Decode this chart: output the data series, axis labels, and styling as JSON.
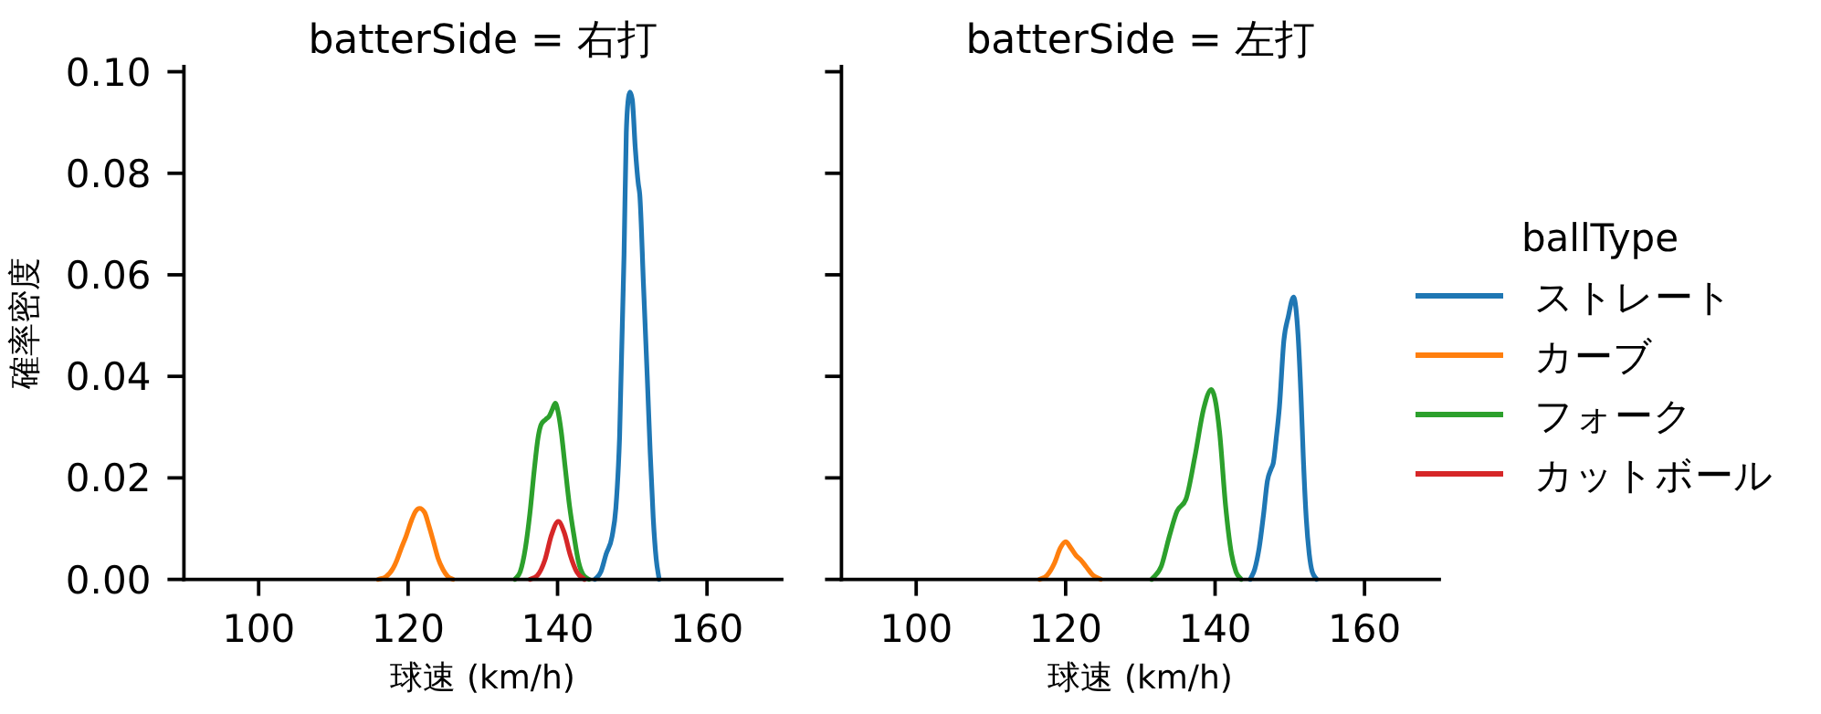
{
  "chart_data": [
    {
      "type": "line",
      "title": "batterSide = 右打",
      "xlabel": "球速 (km/h)",
      "ylabel": "確率密度",
      "legend_title": "ballType",
      "legend": "right",
      "xlim": [
        90,
        170
      ],
      "ylim": [
        0,
        0.101
      ],
      "xticks": [
        100,
        120,
        140,
        160
      ],
      "yticks": [
        {
          "value": 0,
          "label": "0.00"
        },
        0.02,
        0.04,
        0.06,
        0.08,
        {
          "value": 0.1,
          "label": "0.10"
        }
      ],
      "series": [
        {
          "name": "ストレート",
          "color": "#1f77b4",
          "x": [
            145.0,
            145.8,
            146.5,
            147.3,
            147.8,
            148.3,
            148.9,
            149.2,
            149.5,
            149.7,
            150.0,
            150.4,
            150.8,
            151.0,
            151.5,
            152.0,
            152.4,
            152.8,
            153.2,
            153.6
          ],
          "values": [
            0,
            0.0015,
            0.005,
            0.0085,
            0.014,
            0.028,
            0.064,
            0.088,
            0.095,
            0.096,
            0.0945,
            0.085,
            0.078,
            0.0758,
            0.058,
            0.04,
            0.025,
            0.0122,
            0.004,
            0
          ]
        },
        {
          "name": "カーブ",
          "color": "#ff7f0e",
          "x": [
            116.0,
            117.0,
            118.0,
            118.5,
            119.0,
            119.75,
            120.5,
            121.0,
            121.55,
            122.2,
            122.8,
            123.4,
            124.0,
            124.65,
            125.3,
            126.0
          ],
          "values": [
            0,
            0.0005,
            0.0022,
            0.0038,
            0.0058,
            0.0086,
            0.0118,
            0.0134,
            0.014,
            0.0132,
            0.0105,
            0.0074,
            0.0042,
            0.002,
            0.0006,
            0
          ]
        },
        {
          "name": "フォーク",
          "color": "#2ca02c",
          "x": [
            134.3,
            135.0,
            135.7,
            136.3,
            136.9,
            137.4,
            137.8,
            138.4,
            138.9,
            139.3,
            139.7,
            140.0,
            140.5,
            140.95,
            141.6,
            142.2,
            142.8,
            143.4,
            144.2
          ],
          "values": [
            0,
            0.0015,
            0.0062,
            0.013,
            0.0218,
            0.028,
            0.0305,
            0.0315,
            0.0322,
            0.0335,
            0.0347,
            0.0335,
            0.029,
            0.023,
            0.0145,
            0.0086,
            0.0035,
            0.001,
            0
          ]
        },
        {
          "name": "カットボール",
          "color": "#d62728",
          "x": [
            136.3,
            137.3,
            138.3,
            139.2,
            140.1,
            140.9,
            141.7,
            142.6,
            143.6
          ],
          "values": [
            0,
            0.0008,
            0.0038,
            0.0088,
            0.0114,
            0.0092,
            0.0048,
            0.0014,
            0
          ]
        }
      ]
    },
    {
      "type": "line",
      "title": "batterSide = 左打",
      "xlabel": "球速 (km/h)",
      "xlim": [
        90,
        170
      ],
      "ylim": [
        0,
        0.101
      ],
      "xticks": [
        100,
        120,
        140,
        160
      ],
      "yticks": [
        0,
        0.02,
        0.04,
        0.06,
        0.08,
        0.1
      ],
      "tick_labels": "x",
      "series": [
        {
          "color": "#1f77b4",
          "x": [
            144.7,
            145.3,
            145.9,
            146.5,
            147.0,
            147.5,
            147.8,
            148.2,
            148.6,
            149.2,
            149.8,
            150.5,
            151.1,
            151.5,
            151.8,
            152.2,
            152.6,
            153.0,
            153.6
          ],
          "values": [
            0,
            0.002,
            0.0062,
            0.013,
            0.0194,
            0.0218,
            0.023,
            0.028,
            0.0338,
            0.047,
            0.0518,
            0.0556,
            0.0482,
            0.036,
            0.0242,
            0.012,
            0.005,
            0.0015,
            0
          ]
        },
        {
          "color": "#ff7f0e",
          "x": [
            116.5,
            117.5,
            118.5,
            119.3,
            120.0,
            120.7,
            121.4,
            122.0,
            122.8,
            123.6,
            124.7
          ],
          "values": [
            0,
            0.0008,
            0.0032,
            0.0062,
            0.0074,
            0.0062,
            0.0047,
            0.0039,
            0.0024,
            0.0009,
            0
          ]
        },
        {
          "color": "#2ca02c",
          "x": [
            131.5,
            132.8,
            133.9,
            134.9,
            136.1,
            137.3,
            138.5,
            139.5,
            140.0,
            140.6,
            141.4,
            142.2,
            142.8,
            143.5
          ],
          "values": [
            0,
            0.0026,
            0.0086,
            0.0134,
            0.0158,
            0.0242,
            0.0338,
            0.0374,
            0.0355,
            0.029,
            0.0146,
            0.005,
            0.0015,
            0
          ]
        }
      ]
    }
  ]
}
